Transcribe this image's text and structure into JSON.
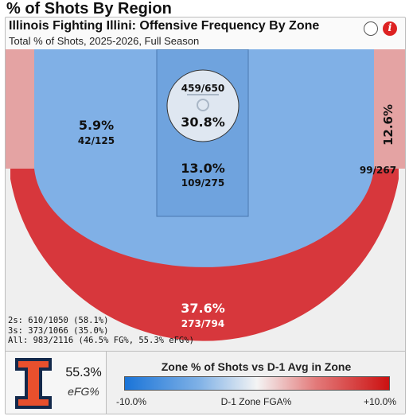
{
  "page": {
    "title": "% of Shots By Region"
  },
  "card": {
    "title": "Illinois Fighting Illini: Offensive Frequency By Zone",
    "subtitle": "Total % of Shots, 2025-2026, Full Season",
    "info_icon": "i"
  },
  "zones": {
    "restricted": {
      "pct": "30.8%",
      "makes": "459/650"
    },
    "paint": {
      "pct": "13.0%",
      "makes": "109/275"
    },
    "midrange": {
      "pct": "5.9%",
      "makes": "42/125"
    },
    "corner_right": {
      "pct": "12.6%",
      "makes": "99/267"
    },
    "three": {
      "pct": "37.6%",
      "makes": "273/794"
    }
  },
  "totals": {
    "twos": "2s: 610/1050 (58.1%)",
    "threes": "3s: 373/1066 (35.0%)",
    "all": "All: 983/2116 (46.5% FG%, 55.3% eFG%)"
  },
  "efg": {
    "value": "55.3%",
    "label": "eFG%"
  },
  "legend": {
    "title": "Zone % of Shots vs D-1 Avg in Zone",
    "min": "-10.0%",
    "mid": "D-1 Zone FGA%",
    "max": "+10.0%"
  },
  "colors": {
    "restricted": "#dfe7f1",
    "paint": "#6fa3de",
    "midrange": "#80b0e6",
    "corner": "#e4a3a3",
    "three": "#d7373c",
    "outside": "#efefef",
    "logo_orange": "#e8502d",
    "logo_navy": "#13294b"
  }
}
